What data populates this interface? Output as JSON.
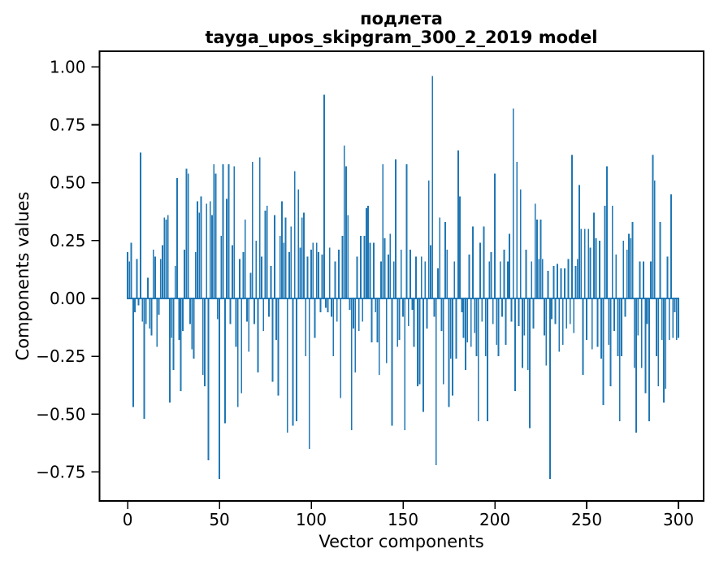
{
  "figure": {
    "background": "#ffffff"
  },
  "chart_data": {
    "type": "bar",
    "title": "подлета",
    "subtitle": "tayga_upos_skipgram_300_2_2019 model",
    "xlabel": "Vector components",
    "ylabel": "Components values",
    "legend": "none",
    "grid": false,
    "bar_color": "#1f77b4",
    "axis_color": "#000000",
    "background_color": "#ffffff",
    "x_start": 0,
    "x_end": 300,
    "xlim": [
      -15.3,
      313.7
    ],
    "ylim": [
      -0.875,
      1.068
    ],
    "x_ticks": [
      0,
      50,
      100,
      150,
      200,
      250,
      300
    ],
    "y_ticks": [
      1.0,
      0.75,
      0.5,
      0.25,
      0.0,
      -0.25,
      -0.5,
      -0.75
    ],
    "y_tick_labels": [
      "1.00",
      "0.75",
      "0.50",
      "0.25",
      "0.00",
      "−0.25",
      "−0.50",
      "−0.75"
    ],
    "values": [
      0.2,
      0.16,
      0.24,
      -0.47,
      -0.06,
      0.17,
      -0.03,
      0.63,
      -0.1,
      -0.52,
      -0.11,
      0.09,
      -0.13,
      -0.16,
      0.21,
      0.18,
      -0.21,
      -0.07,
      0.17,
      0.23,
      0.35,
      0.34,
      0.36,
      -0.45,
      -0.17,
      -0.31,
      0.14,
      0.52,
      -0.18,
      -0.4,
      -0.14,
      0.21,
      0.56,
      0.54,
      -0.11,
      -0.22,
      -0.26,
      0.2,
      0.42,
      0.37,
      0.44,
      -0.33,
      -0.38,
      0.41,
      -0.7,
      0.42,
      0.36,
      0.58,
      0.54,
      -0.09,
      -0.78,
      0.27,
      0.58,
      -0.54,
      0.43,
      0.58,
      -0.11,
      0.23,
      0.57,
      -0.21,
      -0.47,
      0.17,
      -0.41,
      0.2,
      0.34,
      -0.1,
      -0.23,
      0.11,
      0.59,
      -0.11,
      0.25,
      -0.32,
      0.61,
      0.18,
      -0.14,
      0.38,
      0.4,
      -0.08,
      0.14,
      -0.36,
      0.36,
      -0.18,
      -0.42,
      0.27,
      0.42,
      0.24,
      0.35,
      -0.58,
      0.2,
      0.31,
      -0.55,
      0.55,
      -0.53,
      0.47,
      0.22,
      0.35,
      0.37,
      -0.25,
      0.18,
      -0.65,
      0.21,
      0.24,
      -0.17,
      0.24,
      0.2,
      -0.06,
      0.19,
      0.88,
      -0.04,
      -0.06,
      0.22,
      -0.08,
      -0.25,
      0.16,
      -0.1,
      0.21,
      -0.43,
      0.27,
      0.66,
      0.57,
      0.36,
      -0.05,
      -0.57,
      -0.13,
      -0.32,
      0.18,
      -0.14,
      0.27,
      -0.1,
      0.27,
      0.39,
      0.4,
      0.24,
      -0.19,
      0.24,
      -0.06,
      -0.19,
      -0.33,
      0.16,
      0.58,
      0.26,
      -0.28,
      0.19,
      0.28,
      -0.55,
      0.16,
      0.6,
      -0.21,
      -0.18,
      0.21,
      -0.08,
      -0.57,
      0.58,
      -0.12,
      0.21,
      -0.05,
      -0.21,
      0.18,
      -0.38,
      -0.37,
      0.18,
      -0.49,
      0.16,
      -0.13,
      0.51,
      0.23,
      0.96,
      -0.08,
      -0.72,
      0.13,
      0.35,
      -0.14,
      -0.37,
      0.33,
      0.21,
      -0.47,
      -0.26,
      -0.42,
      0.16,
      -0.26,
      0.64,
      0.44,
      -0.06,
      -0.17,
      -0.31,
      -0.19,
      0.19,
      -0.21,
      0.31,
      -0.15,
      -0.25,
      -0.53,
      0.24,
      -0.1,
      0.31,
      -0.25,
      -0.53,
      0.16,
      0.2,
      -0.11,
      0.54,
      -0.2,
      -0.25,
      0.16,
      -0.08,
      0.21,
      -0.2,
      0.16,
      0.28,
      -0.1,
      0.82,
      -0.4,
      0.59,
      -0.12,
      0.47,
      -0.3,
      -0.16,
      0.21,
      -0.31,
      -0.56,
      0.16,
      -0.13,
      0.41,
      0.34,
      0.17,
      0.34,
      0.17,
      -0.16,
      -0.29,
      0.12,
      -0.78,
      -0.09,
      0.14,
      -0.11,
      0.15,
      -0.23,
      0.13,
      -0.2,
      0.13,
      -0.13,
      0.17,
      -0.11,
      0.62,
      -0.15,
      0.14,
      0.17,
      0.49,
      0.3,
      -0.33,
      0.3,
      -0.18,
      0.3,
      0.22,
      -0.22,
      0.37,
      0.26,
      -0.21,
      0.25,
      -0.26,
      -0.46,
      0.4,
      0.57,
      -0.2,
      -0.38,
      0.4,
      -0.14,
      0.19,
      -0.25,
      -0.53,
      -0.25,
      0.25,
      -0.08,
      0.21,
      0.28,
      0.26,
      0.33,
      -0.3,
      -0.58,
      -0.16,
      0.16,
      -0.3,
      0.16,
      -0.41,
      -0.11,
      -0.53,
      0.16,
      0.62,
      0.51,
      -0.25,
      -0.38,
      0.33,
      -0.18,
      -0.45,
      -0.39,
      0.18,
      -0.18,
      0.45,
      -0.17,
      -0.06,
      -0.18,
      -0.17
    ]
  }
}
